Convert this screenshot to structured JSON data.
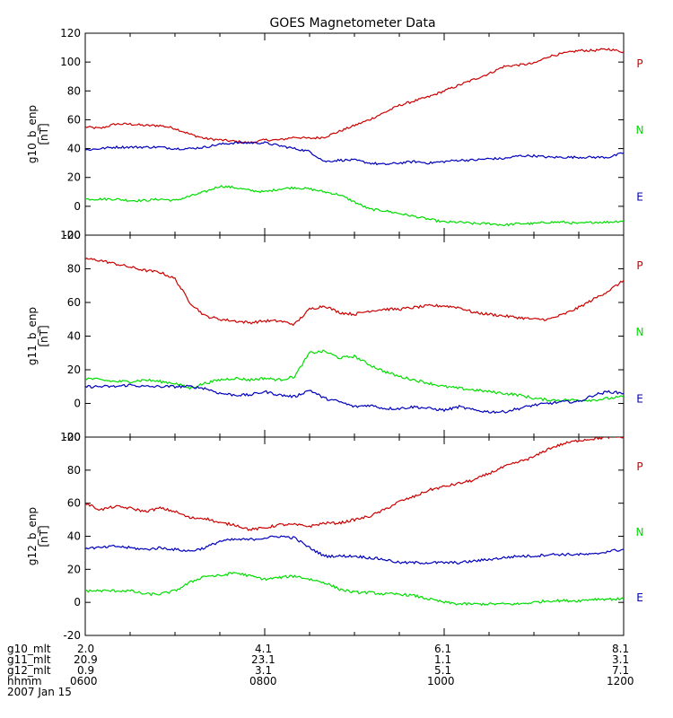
{
  "title": "GOES Magnetometer Data",
  "colors": {
    "P": "#cc0000",
    "N": "#00dd00",
    "E": "#0000bb",
    "axis": "#000000"
  },
  "time_axis": {
    "xlim": [
      0,
      360
    ],
    "units": "minutes after 0600 UT"
  },
  "footer": {
    "rows": [
      {
        "label": "g10_mlt",
        "values": [
          "2.0",
          "4.1",
          "6.1",
          "8.1"
        ]
      },
      {
        "label": "g11_mlt",
        "values": [
          "20.9",
          "23.1",
          "1.1",
          "3.1"
        ]
      },
      {
        "label": "g12_mlt",
        "values": [
          "0.9",
          "3.1",
          "5.1",
          "7.1"
        ]
      },
      {
        "label": "hhmm",
        "values": [
          "0600",
          "0800",
          "1000",
          "1200"
        ]
      }
    ],
    "date": "2007 Jan 15"
  },
  "chart_data": [
    {
      "type": "line",
      "ylabel": "g10_b_enp",
      "yunit": "[nT]",
      "ylim": [
        -20,
        120
      ],
      "yticks": [
        "-20",
        "0",
        "20",
        "40",
        "60",
        "80",
        "100",
        "120"
      ],
      "ytick_values": [
        -20,
        0,
        20,
        40,
        60,
        80,
        100,
        120
      ],
      "legend": [
        "P",
        "N",
        "E"
      ],
      "x": [
        0,
        10,
        20,
        30,
        40,
        50,
        60,
        70,
        80,
        90,
        100,
        110,
        120,
        130,
        140,
        150,
        160,
        170,
        180,
        190,
        200,
        210,
        220,
        230,
        240,
        250,
        260,
        270,
        280,
        290,
        300,
        310,
        320,
        330,
        340,
        350,
        360
      ],
      "series": [
        {
          "name": "P",
          "values": [
            55,
            54,
            57,
            57,
            56,
            56,
            54,
            50,
            47,
            46,
            45,
            44,
            46,
            46,
            48,
            47,
            48,
            52,
            56,
            60,
            65,
            70,
            73,
            76,
            80,
            84,
            88,
            92,
            97,
            98,
            99,
            104,
            106,
            108,
            108,
            109,
            107
          ]
        },
        {
          "name": "N",
          "values": [
            5,
            5,
            5,
            4,
            4,
            5,
            4,
            7,
            10,
            14,
            13,
            11,
            10,
            12,
            13,
            12,
            10,
            8,
            3,
            -2,
            -3,
            -5,
            -7,
            -9,
            -11,
            -11,
            -12,
            -12,
            -13,
            -12,
            -12,
            -11,
            -11,
            -12,
            -11,
            -11,
            -10
          ]
        },
        {
          "name": "E",
          "values": [
            39,
            40,
            41,
            41,
            41,
            41,
            40,
            40,
            41,
            43,
            44,
            44,
            44,
            42,
            40,
            38,
            31,
            32,
            32,
            30,
            29,
            30,
            31,
            30,
            31,
            32,
            32,
            33,
            33,
            35,
            35,
            34,
            34,
            34,
            34,
            34,
            37
          ]
        }
      ]
    },
    {
      "type": "line",
      "ylabel": "g11_b_enp",
      "yunit": "[nT]",
      "ylim": [
        -20,
        100
      ],
      "yticks": [
        "-20",
        "0",
        "20",
        "40",
        "60",
        "80",
        "100"
      ],
      "ytick_values": [
        -20,
        0,
        20,
        40,
        60,
        80,
        100
      ],
      "legend": [
        "P",
        "N",
        "E"
      ],
      "x": [
        0,
        10,
        20,
        30,
        40,
        50,
        60,
        70,
        80,
        90,
        100,
        110,
        120,
        130,
        140,
        150,
        160,
        170,
        180,
        190,
        200,
        210,
        220,
        230,
        240,
        250,
        260,
        270,
        280,
        290,
        300,
        310,
        320,
        330,
        340,
        350,
        360
      ],
      "series": [
        {
          "name": "P",
          "values": [
            86,
            85,
            83,
            81,
            79,
            78,
            74,
            60,
            52,
            50,
            49,
            48,
            49,
            49,
            47,
            56,
            58,
            54,
            53,
            55,
            56,
            56,
            57,
            58,
            58,
            57,
            54,
            53,
            52,
            51,
            50,
            50,
            53,
            57,
            62,
            67,
            73
          ]
        },
        {
          "name": "N",
          "values": [
            15,
            14,
            13,
            13,
            14,
            13,
            12,
            9,
            12,
            14,
            15,
            14,
            15,
            14,
            16,
            30,
            31,
            27,
            28,
            23,
            19,
            16,
            14,
            12,
            10,
            9,
            8,
            7,
            6,
            5,
            3,
            2,
            2,
            2,
            2,
            3,
            4
          ]
        },
        {
          "name": "E",
          "values": [
            10,
            10,
            10,
            11,
            10,
            10,
            10,
            10,
            9,
            6,
            5,
            5,
            7,
            5,
            4,
            8,
            3,
            1,
            -2,
            -1,
            -3,
            -3,
            -2,
            -3,
            -4,
            -2,
            -4,
            -5,
            -5,
            -3,
            -1,
            0,
            1,
            1,
            5,
            7,
            6
          ]
        }
      ]
    },
    {
      "type": "line",
      "ylabel": "g12_b_enp",
      "yunit": "[nT]",
      "ylim": [
        -20,
        100
      ],
      "yticks": [
        "-20",
        "0",
        "20",
        "40",
        "60",
        "80",
        "100"
      ],
      "ytick_values": [
        -20,
        0,
        20,
        40,
        60,
        80,
        100
      ],
      "legend": [
        "P",
        "N",
        "E"
      ],
      "x": [
        0,
        10,
        20,
        30,
        40,
        50,
        60,
        70,
        80,
        90,
        100,
        110,
        120,
        130,
        140,
        150,
        160,
        170,
        180,
        190,
        200,
        210,
        220,
        230,
        240,
        250,
        260,
        270,
        280,
        290,
        300,
        310,
        320,
        330,
        340,
        350,
        360
      ],
      "series": [
        {
          "name": "P",
          "values": [
            60,
            56,
            58,
            57,
            55,
            57,
            55,
            51,
            51,
            48,
            47,
            44,
            45,
            47,
            47,
            46,
            48,
            48,
            50,
            52,
            56,
            61,
            64,
            68,
            70,
            72,
            74,
            78,
            82,
            85,
            88,
            93,
            96,
            98,
            99,
            100,
            100
          ]
        },
        {
          "name": "N",
          "values": [
            7,
            7,
            7,
            7,
            5,
            5,
            7,
            12,
            16,
            16,
            18,
            16,
            14,
            15,
            16,
            14,
            12,
            8,
            6,
            6,
            5,
            5,
            4,
            2,
            0,
            -1,
            -1,
            -1,
            -1,
            -1,
            0,
            1,
            1,
            1,
            2,
            2,
            2
          ]
        },
        {
          "name": "E",
          "values": [
            33,
            33,
            34,
            33,
            32,
            33,
            32,
            31,
            33,
            37,
            38,
            38,
            39,
            40,
            39,
            33,
            28,
            28,
            28,
            27,
            26,
            24,
            24,
            24,
            24,
            24,
            25,
            26,
            27,
            28,
            28,
            29,
            29,
            29,
            29,
            31,
            32
          ]
        }
      ]
    }
  ]
}
